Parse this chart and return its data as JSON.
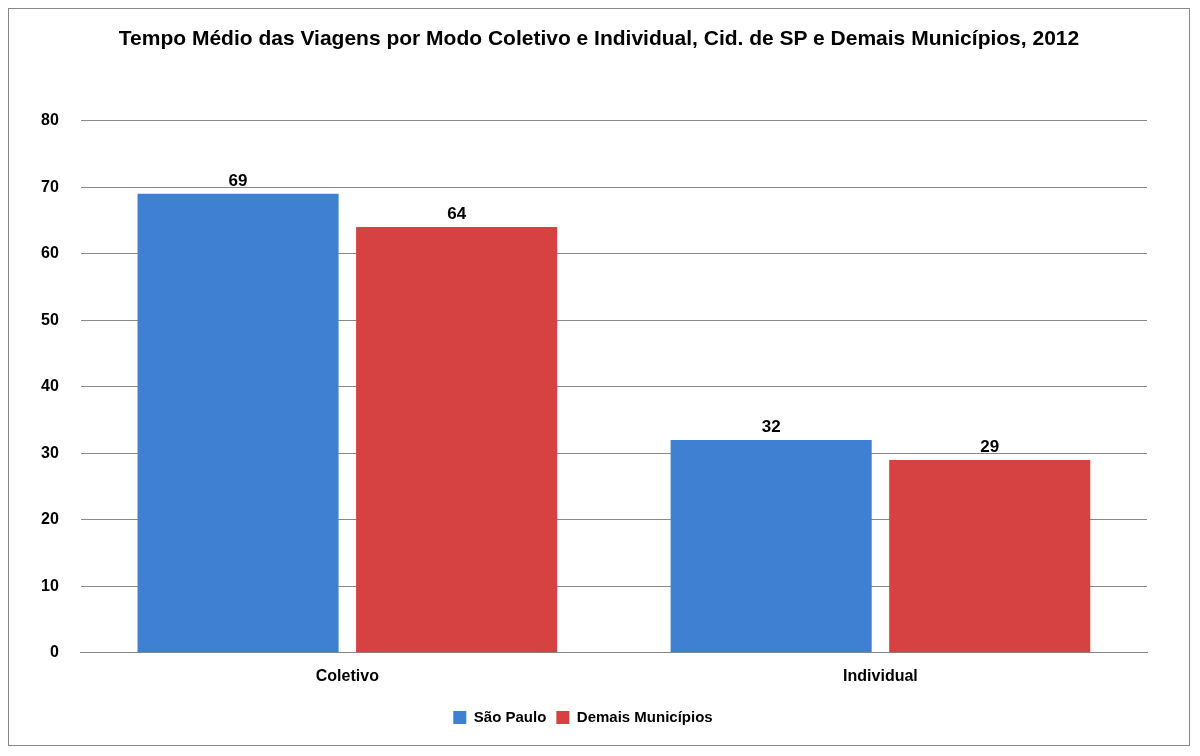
{
  "chart_data": {
    "type": "bar",
    "title": "Tempo Médio das Viagens por Modo Coletivo e Individual, Cid. de SP e Demais Municípios, 2012",
    "categories": [
      "Coletivo",
      "Individual"
    ],
    "series": [
      {
        "name": "São Paulo",
        "color": "#3f80d2",
        "values": [
          69,
          32
        ]
      },
      {
        "name": "Demais Municípios",
        "color": "#d64242",
        "values": [
          64,
          29
        ]
      }
    ],
    "ylim": [
      0,
      80
    ],
    "yticks": [
      0,
      10,
      20,
      30,
      40,
      50,
      60,
      70,
      80
    ],
    "grid": "y",
    "legend": "bottom",
    "data_labels": true
  }
}
